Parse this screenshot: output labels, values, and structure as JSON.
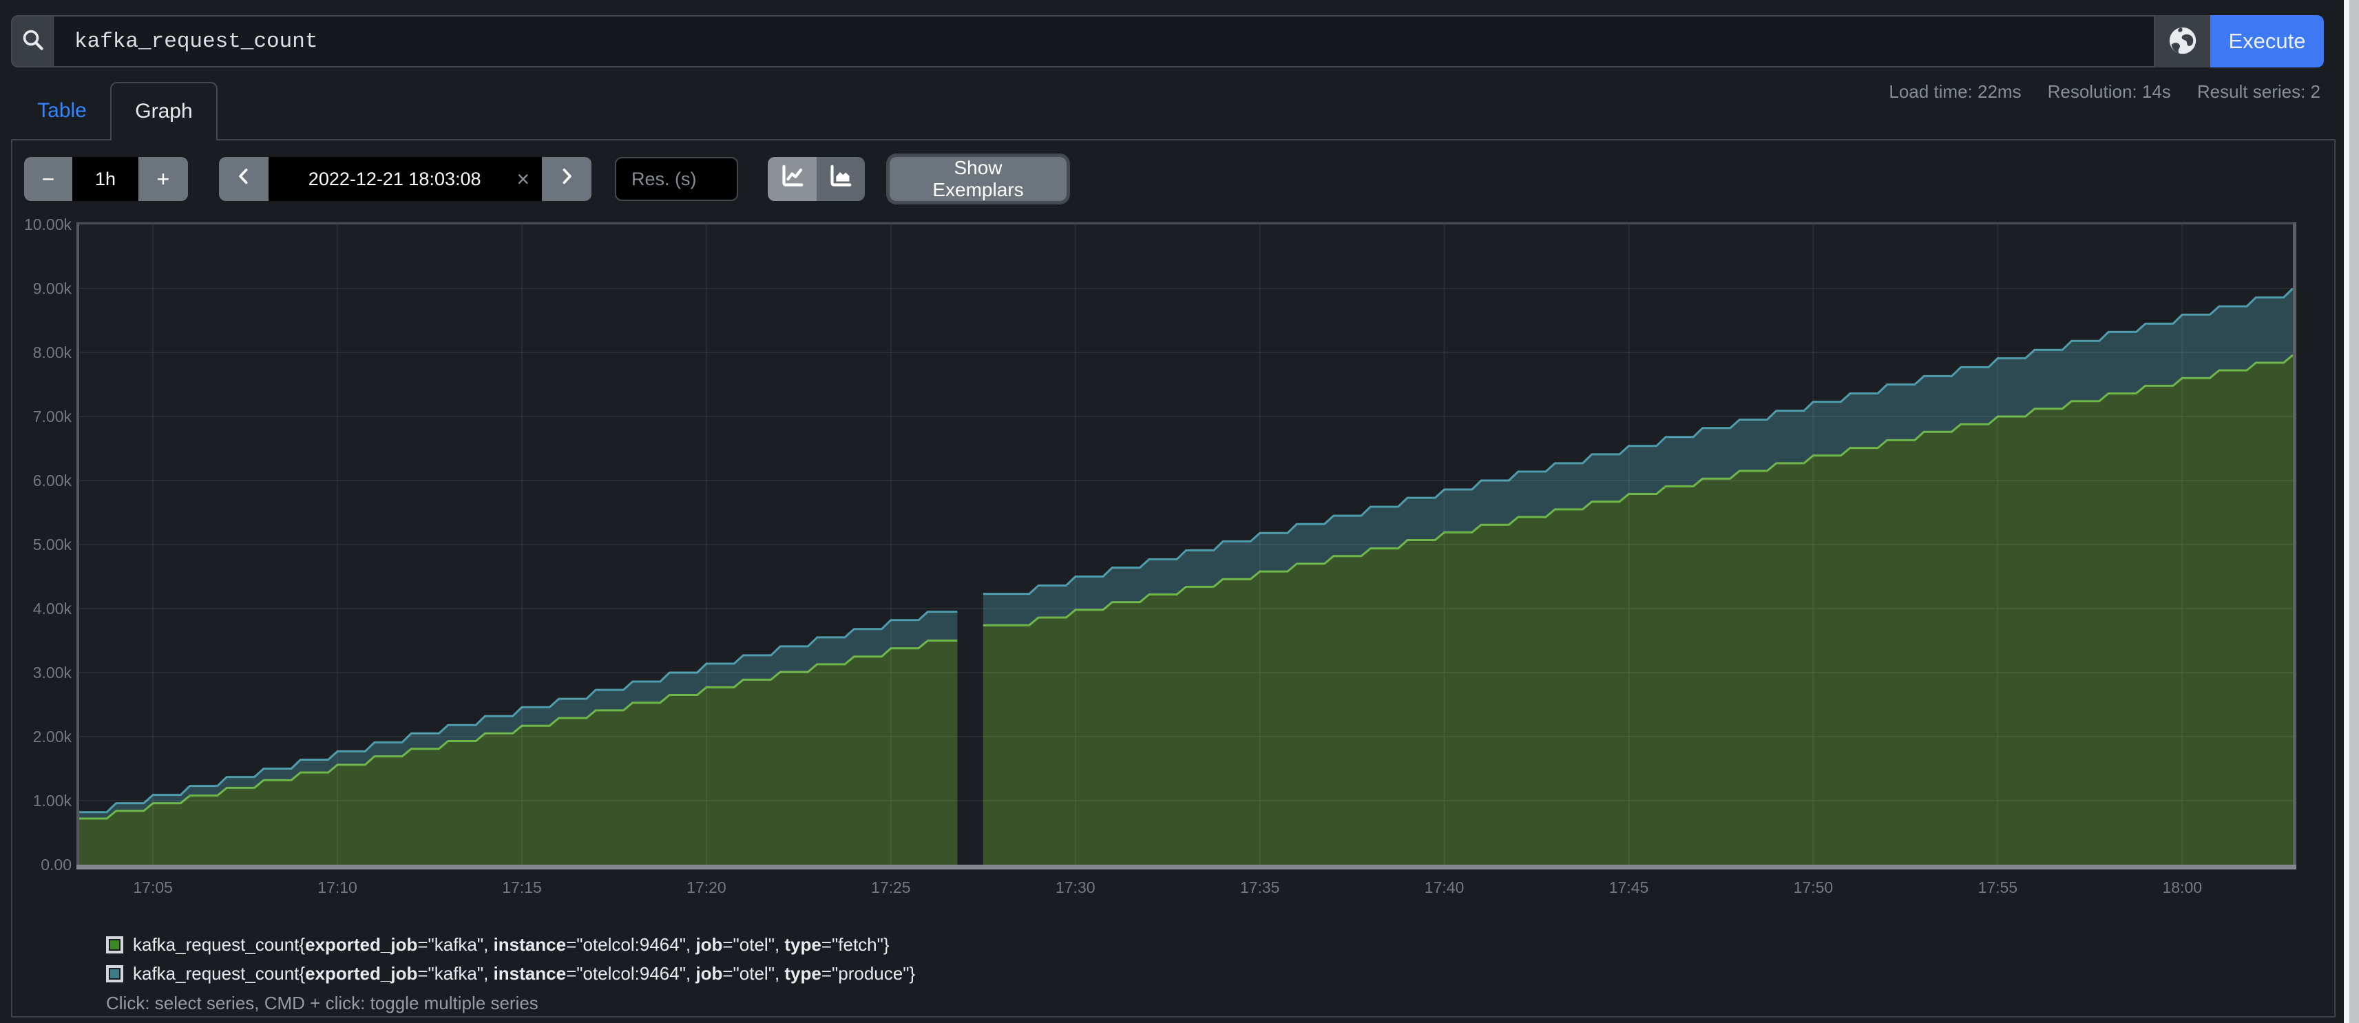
{
  "query_bar": {
    "query": "kafka_request_count",
    "execute_label": "Execute"
  },
  "stats": {
    "load_time": "Load time: 22ms",
    "resolution": "Resolution: 14s",
    "result_series": "Result series: 2"
  },
  "tabs": {
    "table_label": "Table",
    "graph_label": "Graph"
  },
  "toolbar": {
    "minus_label": "−",
    "duration_value": "1h",
    "plus_label": "+",
    "time_value": "2022-12-21 18:03:08",
    "clear_label": "×",
    "res_placeholder": "Res. (s)",
    "show_exemplars_label": "Show Exemplars"
  },
  "graph_footer": "Click: select series, CMD + click: toggle multiple series",
  "colors": {
    "page_bg": "#191c21",
    "plot_bg": "#1b1e23",
    "accent_blue": "#3c79f2",
    "link_blue": "#3585ff",
    "secondary_btn": "#6c757d",
    "grid": "rgba(255,255,255,0.06)",
    "axis_text": "#75797f",
    "border_strong": "#84878b",
    "fetch_line": "#6fb74a",
    "fetch_fill": "#3a5429",
    "produce_line": "#4f9dac",
    "produce_fill": "rgba(79,157,172,0.35)",
    "swatch_fetch": "#3d8724",
    "swatch_produce": "#3c7d88"
  },
  "chart_data": {
    "type": "area",
    "title": "",
    "xlabel": "",
    "ylabel": "",
    "ylim": [
      0,
      10000
    ],
    "unit": "k",
    "grid": true,
    "legend_position": "bottom",
    "y_tick_labels": [
      "0.00",
      "1.00k",
      "2.00k",
      "3.00k",
      "4.00k",
      "5.00k",
      "6.00k",
      "7.00k",
      "8.00k",
      "9.00k",
      "10.00k"
    ],
    "x_tick_labels": [
      "17:05",
      "17:10",
      "17:15",
      "17:20",
      "17:25",
      "17:30",
      "17:35",
      "17:40",
      "17:45",
      "17:50",
      "17:55",
      "18:00"
    ],
    "x_tick_minutes": [
      2,
      7,
      12,
      17,
      22,
      27,
      32,
      37,
      42,
      47,
      52,
      57
    ],
    "x_minutes_from_start": [
      0,
      1,
      2,
      3,
      4,
      5,
      6,
      7,
      8,
      9,
      10,
      11,
      12,
      13,
      14,
      15,
      16,
      17,
      18,
      19,
      20,
      21,
      22,
      23,
      24,
      25,
      26,
      27,
      28,
      29,
      30,
      31,
      32,
      33,
      34,
      35,
      36,
      37,
      38,
      39,
      40,
      41,
      42,
      43,
      44,
      45,
      46,
      47,
      48,
      49,
      50,
      51,
      52,
      53,
      54,
      55,
      56,
      57,
      58,
      59,
      60
    ],
    "gap_note": "scrape missing around 17:27 (null)",
    "series": [
      {
        "metric": "kafka_request_count",
        "labels": [
          {
            "k": "exported_job",
            "v": "kafka"
          },
          {
            "k": "instance",
            "v": "otelcol:9464"
          },
          {
            "k": "job",
            "v": "otel"
          },
          {
            "k": "type",
            "v": "fetch"
          }
        ],
        "values_k": [
          0.72,
          0.84,
          0.96,
          1.08,
          1.2,
          1.32,
          1.44,
          1.56,
          1.69,
          1.81,
          1.93,
          2.05,
          2.17,
          2.29,
          2.41,
          2.53,
          2.65,
          2.77,
          2.89,
          3.01,
          3.13,
          3.25,
          3.38,
          3.5,
          null,
          3.74,
          3.86,
          3.98,
          4.1,
          4.22,
          4.34,
          4.46,
          4.58,
          4.7,
          4.82,
          4.94,
          5.07,
          5.19,
          5.31,
          5.43,
          5.55,
          5.67,
          5.79,
          5.91,
          6.03,
          6.15,
          6.27,
          6.39,
          6.51,
          6.63,
          6.76,
          6.88,
          7.0,
          7.12,
          7.24,
          7.36,
          7.48,
          7.6,
          7.72,
          7.84,
          7.96
        ]
      },
      {
        "metric": "kafka_request_count",
        "labels": [
          {
            "k": "exported_job",
            "v": "kafka"
          },
          {
            "k": "instance",
            "v": "otelcol:9464"
          },
          {
            "k": "job",
            "v": "otel"
          },
          {
            "k": "type",
            "v": "produce"
          }
        ],
        "values_k": [
          0.82,
          0.96,
          1.09,
          1.23,
          1.37,
          1.5,
          1.64,
          1.77,
          1.91,
          2.05,
          2.18,
          2.32,
          2.46,
          2.59,
          2.73,
          2.86,
          3.0,
          3.14,
          3.27,
          3.41,
          3.55,
          3.68,
          3.82,
          3.95,
          null,
          4.23,
          4.36,
          4.5,
          4.64,
          4.77,
          4.91,
          5.05,
          5.18,
          5.32,
          5.45,
          5.59,
          5.73,
          5.86,
          6.0,
          6.14,
          6.27,
          6.41,
          6.54,
          6.68,
          6.82,
          6.95,
          7.09,
          7.23,
          7.36,
          7.5,
          7.63,
          7.77,
          7.91,
          8.04,
          8.18,
          8.32,
          8.45,
          8.59,
          8.72,
          8.86,
          9.0
        ]
      }
    ]
  }
}
